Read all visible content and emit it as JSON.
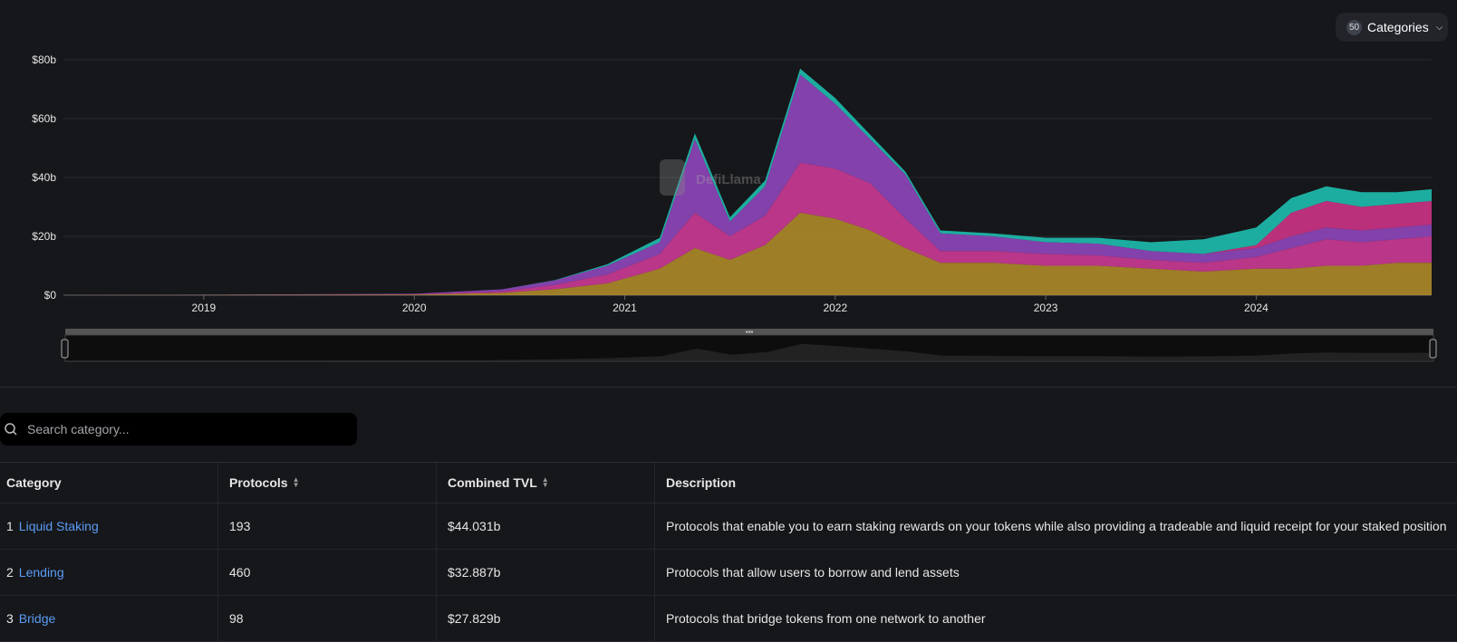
{
  "header": {
    "categories_count": "50",
    "categories_label": "Categories"
  },
  "chart_data": {
    "type": "area",
    "yaxis_ticks": [
      "$0",
      "$20b",
      "$40b",
      "$60b",
      "$80b"
    ],
    "ylim": [
      0,
      80
    ],
    "xaxis_ticks": [
      "2019",
      "2020",
      "2021",
      "2022",
      "2023",
      "2024"
    ],
    "watermark": "DefiLlama",
    "x": [
      "2018-05",
      "2019-01",
      "2020-01",
      "2020-06",
      "2020-09",
      "2020-12",
      "2021-03",
      "2021-05",
      "2021-07",
      "2021-09",
      "2021-11",
      "2022-01",
      "2022-03",
      "2022-05",
      "2022-07",
      "2022-10",
      "2023-01",
      "2023-04",
      "2023-07",
      "2023-10",
      "2024-01",
      "2024-03",
      "2024-05",
      "2024-07",
      "2024-09",
      "2024-11"
    ],
    "series": [
      {
        "color": "#b7902c",
        "values": [
          0,
          0.1,
          0.2,
          0.8,
          2,
          4,
          9,
          16,
          12,
          17,
          28,
          26,
          22,
          16,
          11,
          11,
          10,
          10,
          9,
          8,
          9,
          9,
          10,
          10,
          11,
          11
        ]
      },
      {
        "color": "#d63c9c",
        "values": [
          0,
          0,
          0.1,
          0.5,
          1.5,
          3,
          5,
          12,
          8,
          10,
          17,
          17,
          16,
          10,
          4,
          4,
          4,
          3.5,
          3,
          3,
          4,
          7,
          9,
          8,
          8,
          9
        ]
      },
      {
        "color": "#9649c6",
        "values": [
          0,
          0.1,
          0.2,
          0.7,
          1.5,
          3,
          4,
          25,
          5,
          10,
          30,
          22,
          15,
          15,
          6,
          5,
          4,
          4,
          3,
          3,
          3,
          4,
          4,
          4,
          4,
          4
        ]
      },
      {
        "color": "#d8358c",
        "values": [
          0,
          0,
          0,
          0,
          0,
          0,
          0,
          0,
          0,
          0,
          0,
          0,
          0,
          0,
          0,
          0,
          0,
          0,
          0,
          0,
          1,
          8,
          9,
          8,
          8,
          8
        ]
      },
      {
        "color": "#1fc8b8",
        "values": [
          0,
          0,
          0,
          0,
          0.1,
          0.5,
          1.5,
          2,
          1.5,
          2,
          2,
          2,
          1.5,
          1,
          1,
          1,
          1.5,
          2,
          3,
          5,
          6,
          5,
          5,
          5,
          4,
          4
        ]
      }
    ]
  },
  "search": {
    "placeholder": "Search category..."
  },
  "table": {
    "headers": {
      "category": "Category",
      "protocols": "Protocols",
      "tvl": "Combined TVL",
      "description": "Description"
    },
    "rows": [
      {
        "rank": "1",
        "category": "Liquid Staking",
        "protocols": "193",
        "tvl": "$44.031b",
        "description": "Protocols that enable you to earn staking rewards on your tokens while also providing a tradeable and liquid receipt for your staked position"
      },
      {
        "rank": "2",
        "category": "Lending",
        "protocols": "460",
        "tvl": "$32.887b",
        "description": "Protocols that allow users to borrow and lend assets"
      },
      {
        "rank": "3",
        "category": "Bridge",
        "protocols": "98",
        "tvl": "$27.829b",
        "description": "Protocols that bridge tokens from one network to another"
      }
    ]
  }
}
